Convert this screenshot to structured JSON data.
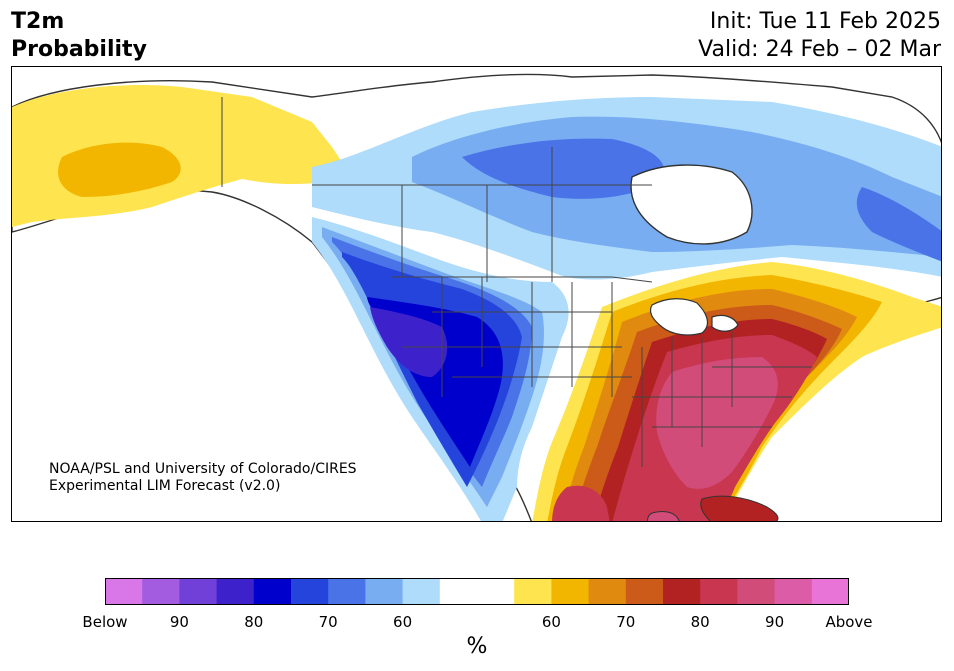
{
  "header": {
    "title_line1": "T2m",
    "title_line2": "Probability",
    "init": "Init: Tue 11 Feb 2025",
    "valid": "Valid: 24 Feb – 02 Mar"
  },
  "credit": {
    "line1": "NOAA/PSL and University of Colorado/CIRES",
    "line2": "Experimental LIM Forecast (v2.0)"
  },
  "colorbar": {
    "below_colors": [
      "#d977e8",
      "#a35ce0",
      "#7040d8",
      "#3d22cc",
      "#0000cc",
      "#2444dc",
      "#4a73e8",
      "#78adf2",
      "#aedcfa"
    ],
    "neutral_color": "#ffffff",
    "above_colors": [
      "#fee44e",
      "#f2b500",
      "#e08a10",
      "#cc5a18",
      "#b22222",
      "#c83650",
      "#d24c7a",
      "#dc5ca8",
      "#e874d8"
    ],
    "tick_labels": [
      "Below",
      "90",
      "80",
      "70",
      "60",
      "60",
      "70",
      "80",
      "90",
      "Above"
    ],
    "unit": "%"
  },
  "map": {
    "region": "North America",
    "legend": {
      "warm_colors": [
        "#fee44e",
        "#f2b500",
        "#e08a10",
        "#cc5a18",
        "#b22222",
        "#c83650",
        "#d24c7a"
      ],
      "cold_colors": [
        "#aedcfa",
        "#78adf2",
        "#4a73e8",
        "#2444dc",
        "#0000cc",
        "#3d22cc"
      ]
    }
  }
}
